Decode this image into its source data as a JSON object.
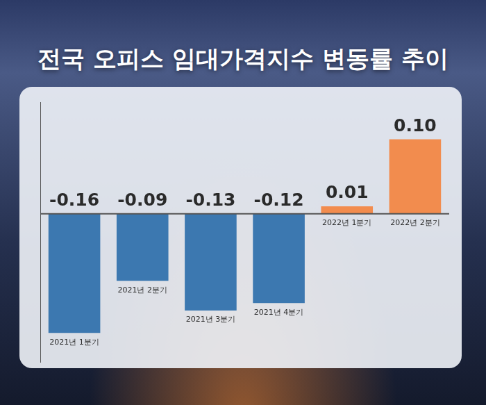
{
  "chart_data": {
    "type": "bar",
    "title": "전국 오피스 임대가격지수 변동률 추이",
    "categories": [
      "2021년 1분기",
      "2021년 2분기",
      "2021년 3분기",
      "2021년 4분기",
      "2022년 1분기",
      "2022년 2분기"
    ],
    "values": [
      -0.16,
      -0.09,
      -0.13,
      -0.12,
      0.01,
      0.1
    ],
    "value_labels": [
      "-0.16",
      "-0.09",
      "-0.13",
      "-0.12",
      "0.01",
      "0.10"
    ],
    "colors": [
      "#3c78b0",
      "#3c78b0",
      "#3c78b0",
      "#3c78b0",
      "#f28c4e",
      "#f28c4e"
    ],
    "ylim": [
      -0.2,
      0.15
    ],
    "grid": false,
    "data_labels": true,
    "tick_labels": "x"
  }
}
